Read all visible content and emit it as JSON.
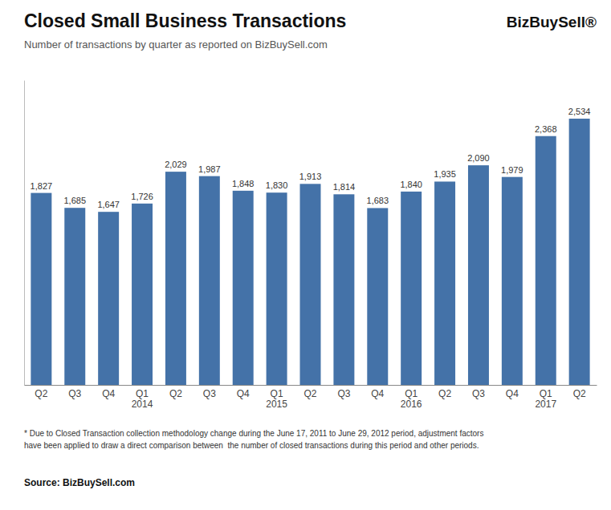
{
  "chart_data": {
    "type": "bar",
    "title": "Closed Small Business Transactions",
    "subtitle": "Number of transactions by quarter as reported on BizBuySell.com",
    "logo": "BizBuySell®",
    "categories": [
      "Q2",
      "Q3",
      "Q4",
      "Q1\n2014",
      "Q2",
      "Q3",
      "Q4",
      "Q1\n2015",
      "Q2",
      "Q3",
      "Q4",
      "Q1\n2016",
      "Q2",
      "Q3",
      "Q4",
      "Q1\n2017",
      "Q2"
    ],
    "values": [
      1827,
      1685,
      1647,
      1726,
      2029,
      1987,
      1848,
      1830,
      1913,
      1814,
      1683,
      1840,
      1935,
      2090,
      1979,
      2368,
      2534
    ],
    "value_labels": [
      "1,827",
      "1,685",
      "1,647",
      "1,726",
      "2,029",
      "1,987",
      "1,848",
      "1,830",
      "1,913",
      "1,814",
      "1,683",
      "1,840",
      "1,935",
      "2,090",
      "1,979",
      "2,368",
      "2,534"
    ],
    "color": "#4472A8",
    "ylim": [
      0,
      2900
    ],
    "data_labels": true,
    "tick_labels": "x",
    "footnotes": [
      "* Due to Closed Transaction collection methodology change during the June 17, 2011 to June 29, 2012 period, adjustment factors",
      "have been applied to draw a direct comparison between  the number of closed transactions during this period and other periods."
    ],
    "source": "Source: BizBuySell.com"
  }
}
